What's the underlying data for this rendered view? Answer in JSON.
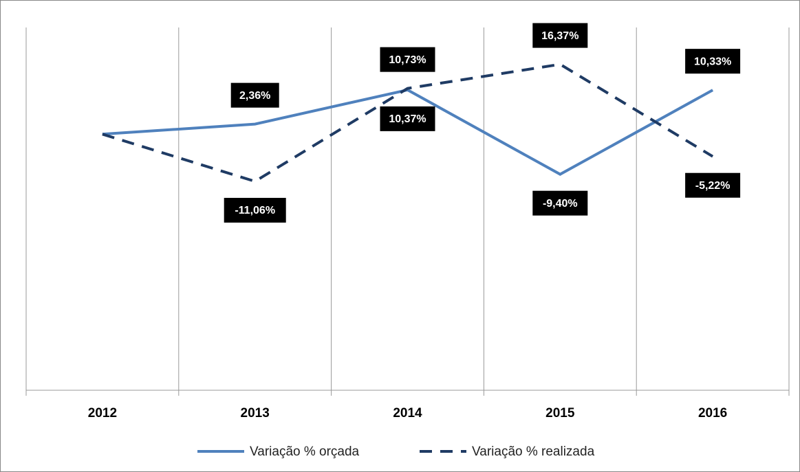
{
  "chart_data": {
    "type": "line",
    "categories": [
      "2012",
      "2013",
      "2014",
      "2015",
      "2016"
    ],
    "series": [
      {
        "name": "Variação % orçada",
        "color": "#4f81bd",
        "dashed": false,
        "values": [
          0,
          2.36,
          10.37,
          -9.4,
          10.33
        ],
        "value_labels": [
          null,
          "2,36%",
          "10,37%",
          "-9,40%",
          "10,33%"
        ]
      },
      {
        "name": "Variação % realizada",
        "color": "#1f3b64",
        "dashed": true,
        "values": [
          0,
          -11.06,
          10.73,
          16.37,
          -5.22
        ],
        "value_labels": [
          null,
          "-11,06%",
          "10,73%",
          "16,37%",
          "-5,22%"
        ]
      }
    ],
    "ylim": [
      -60,
      25
    ],
    "grid": true
  }
}
